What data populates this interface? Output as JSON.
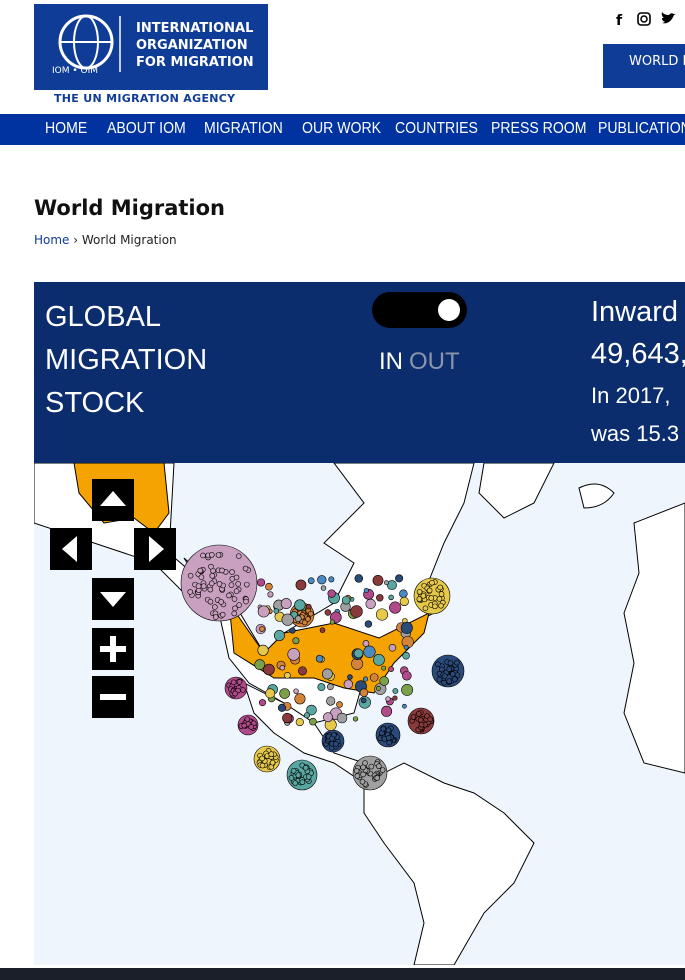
{
  "header": {
    "logo_text": "INTERNATIONAL ORGANIZATION FOR MIGRATION",
    "logo_abbr": "IOM • OIM",
    "tagline": "THE UN MIGRATION AGENCY",
    "button": "WORLD M"
  },
  "nav": {
    "items": [
      "HOME",
      "ABOUT IOM",
      "MIGRATION",
      "OUR WORK",
      "COUNTRIES",
      "PRESS ROOM",
      "PUBLICATIONS"
    ]
  },
  "page": {
    "title": "World Migration",
    "breadcrumb": [
      "Home",
      "World Migration"
    ]
  },
  "panel": {
    "title": "GLOBAL MIGRATION STOCK",
    "toggle_in": "IN",
    "toggle_out": "OUT",
    "heading": "Inward",
    "figure": "49,643,",
    "note_line1": "In 2017,",
    "note_line2": "was 15.3"
  }
}
